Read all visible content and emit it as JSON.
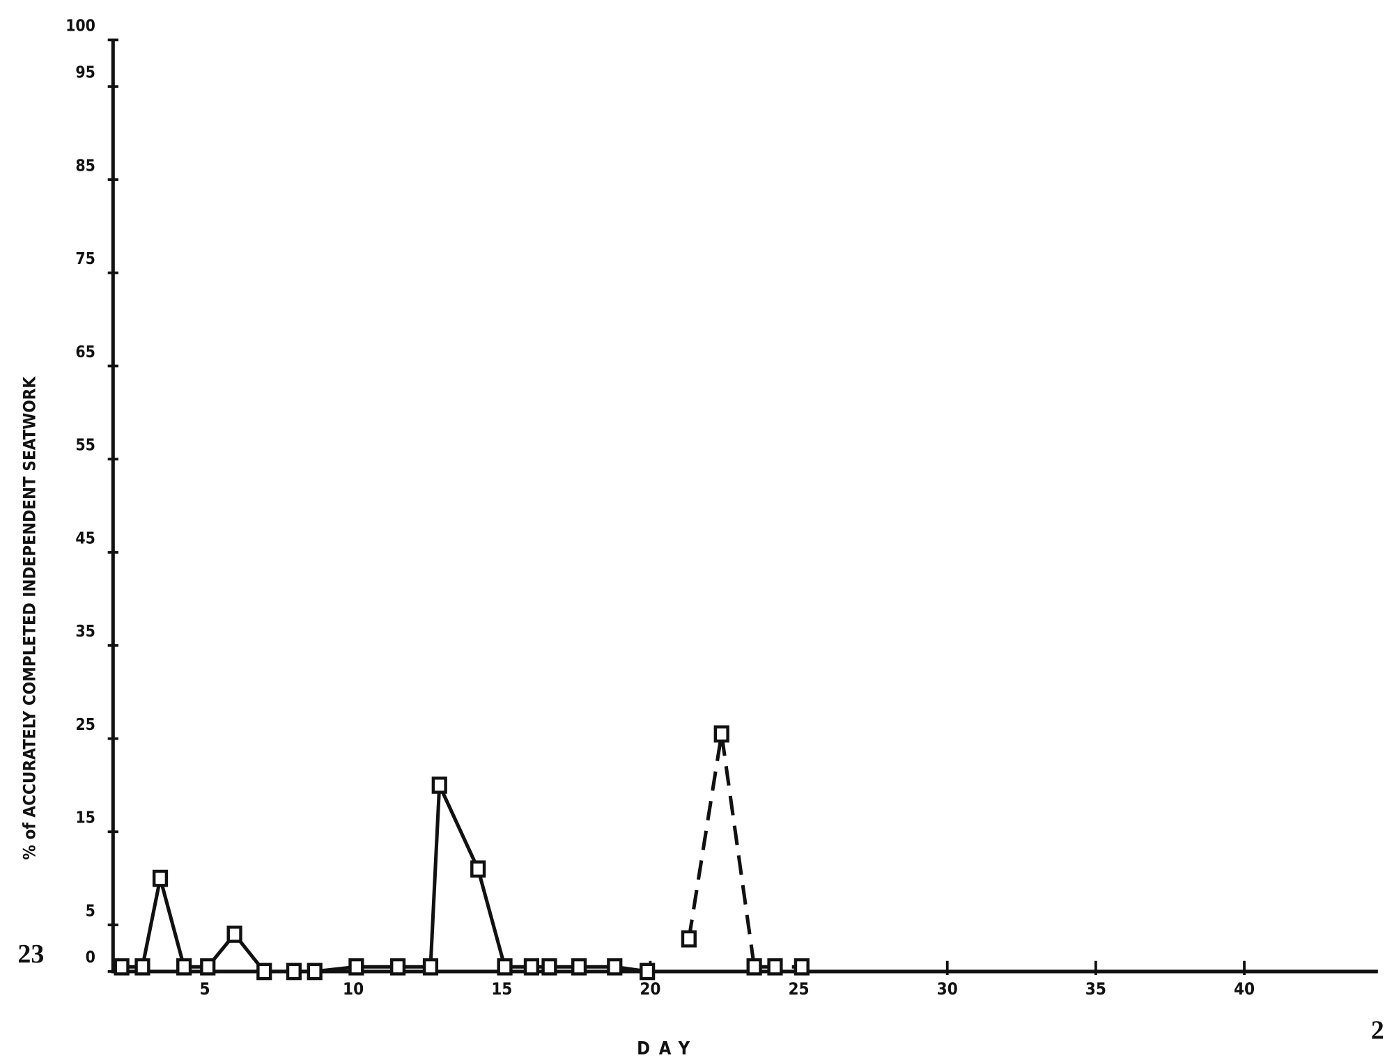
{
  "chart_data": {
    "type": "line",
    "y_label": "% of ACCURATELY COMPLETED INDEPENDENT SEATWORK",
    "x_label": "DAY",
    "xlim": [
      2,
      44.5
    ],
    "xticks": [
      5,
      10,
      15,
      20,
      25,
      30,
      35,
      40
    ],
    "ylim": [
      0,
      100
    ],
    "yticks": [
      0,
      5,
      15,
      25,
      35,
      45,
      55,
      65,
      75,
      85,
      95,
      100
    ],
    "series": [
      {
        "color": "#111111",
        "style": "solid",
        "x": [
          2.2,
          2.9,
          3.5,
          4.3,
          5.1,
          6.0,
          7.0,
          8.0,
          8.7,
          10.1,
          11.5,
          12.6,
          12.9,
          14.2,
          15.1,
          16.0,
          16.6,
          17.6,
          18.8,
          19.9
        ],
        "values": [
          0.5,
          0.5,
          10,
          0.5,
          0.5,
          4,
          0,
          0,
          0,
          0.5,
          0.5,
          0.5,
          20,
          11,
          0.5,
          0.5,
          0.5,
          0.5,
          0.5,
          0
        ]
      },
      {
        "color": "#111111",
        "style": "dashed",
        "x": [
          21.3,
          22.4,
          23.5,
          24.2,
          25.1
        ],
        "values": [
          3.5,
          25.5,
          0.5,
          0.5,
          0.5
        ]
      }
    ],
    "page_numbers": [
      "23",
      "2"
    ]
  }
}
